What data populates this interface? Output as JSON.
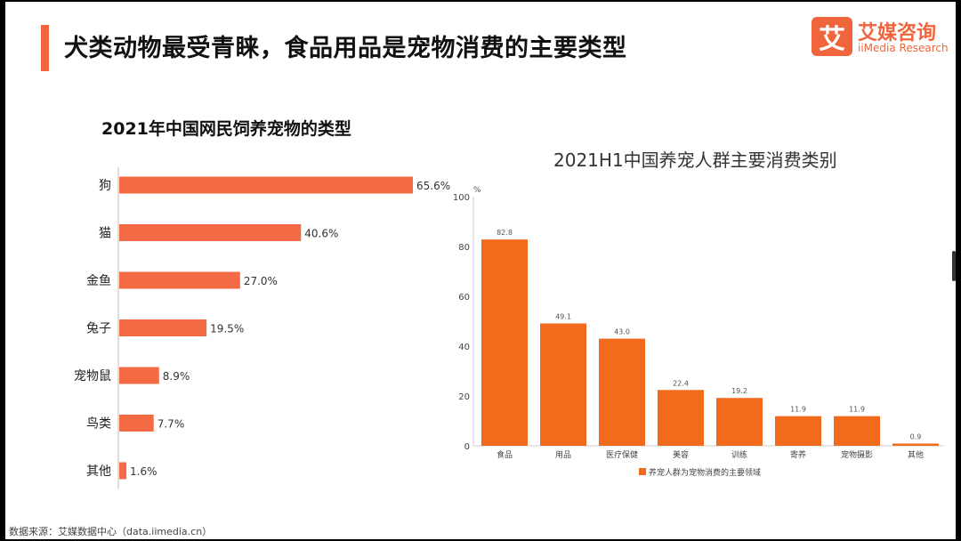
{
  "title": "犬类动物最受青睐，食品用品是宠物消费的主要类型",
  "logo": {
    "icon_char": "艾",
    "name_cn": "艾媒咨询",
    "name_en": "iiMedia Research"
  },
  "colors": {
    "accent": "#F0653C",
    "bar_left": "#F36B45",
    "bar_right": "#F26A1B"
  },
  "source": "数据来源：艾媒数据中心（data.iimedia.cn）",
  "chart_data": [
    {
      "type": "bar",
      "orientation": "horizontal",
      "title": "2021年中国网民饲养宠物的类型",
      "categories": [
        "狗",
        "猫",
        "金鱼",
        "兔子",
        "宠物鼠",
        "鸟类",
        "其他"
      ],
      "values": [
        65.6,
        40.6,
        27.0,
        19.5,
        8.9,
        7.7,
        1.6
      ],
      "value_labels": [
        "65.6%",
        "40.6%",
        "27.0%",
        "19.5%",
        "8.9%",
        "7.7%",
        "1.6%"
      ],
      "xlim": [
        0,
        65.6
      ]
    },
    {
      "type": "bar",
      "title": "2021H1中国养宠人群主要消费类别",
      "ylabel": "%",
      "ylim": [
        0,
        100
      ],
      "yticks": [
        0,
        20,
        40,
        60,
        80,
        100
      ],
      "categories": [
        "食品",
        "用品",
        "医疗保健",
        "美容",
        "训练",
        "寄养",
        "宠物摄影",
        "其他"
      ],
      "values": [
        82.8,
        49.1,
        43.0,
        22.4,
        19.2,
        11.9,
        11.9,
        0.9
      ],
      "value_labels": [
        "82.8",
        "49.1",
        "43.0",
        "22.4",
        "19.2",
        "11.9",
        "11.9",
        "0.9"
      ],
      "grid": false,
      "legend": "bottom",
      "series": [
        {
          "name": "养宠人群为宠物消费的主要领域",
          "values": [
            82.8,
            49.1,
            43.0,
            22.4,
            19.2,
            11.9,
            11.9,
            0.9
          ]
        }
      ]
    }
  ]
}
